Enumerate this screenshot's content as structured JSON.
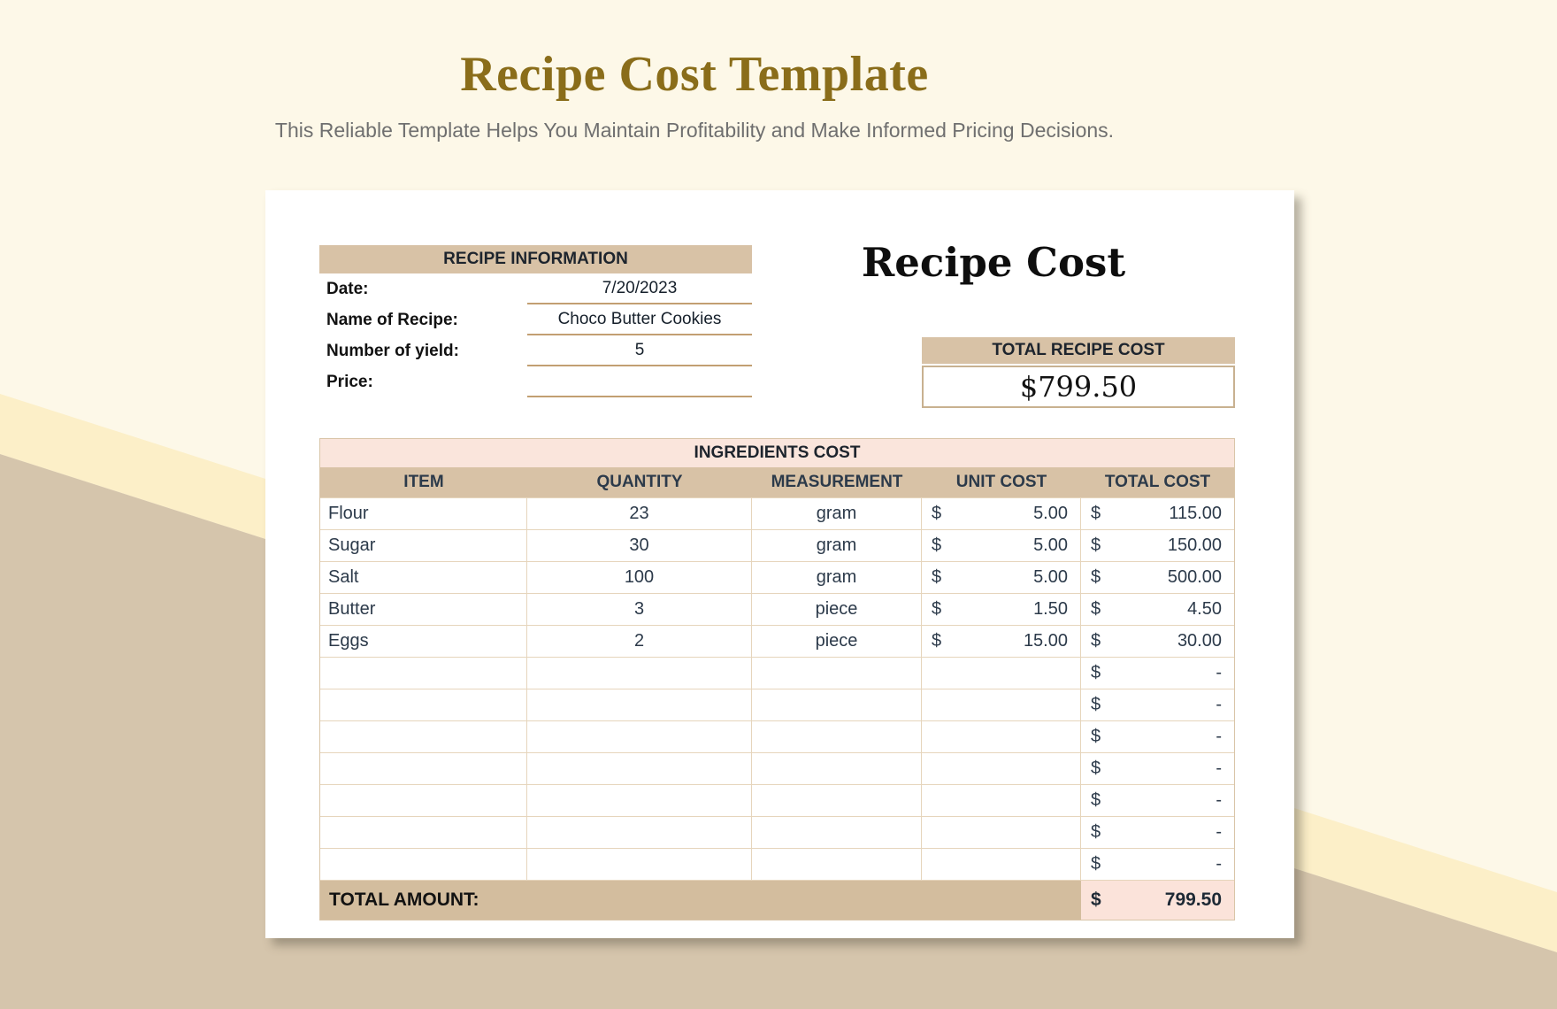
{
  "page": {
    "title": "Recipe Cost Template",
    "subtitle": "This Reliable Template Helps You Maintain Profitability and Make Informed Pricing Decisions."
  },
  "recipe_information": {
    "title": "RECIPE INFORMATION",
    "fields": [
      {
        "label": "Date:",
        "value": "7/20/2023"
      },
      {
        "label": "Name of Recipe:",
        "value": "Choco Butter Cookies"
      },
      {
        "label": "Number of yield:",
        "value": "5"
      },
      {
        "label": "Price:",
        "value": ""
      }
    ]
  },
  "recipe_cost": {
    "heading": "Recipe Cost",
    "total_label": "TOTAL RECIPE COST",
    "total_value": "$799.50"
  },
  "ingredients": {
    "title": "INGREDIENTS COST",
    "columns": [
      "ITEM",
      "QUANTITY",
      "MEASUREMENT",
      "UNIT COST",
      "TOTAL COST"
    ],
    "rows": [
      {
        "item": "Flour",
        "quantity": "23",
        "measurement": "gram",
        "unit_currency": "$",
        "unit_cost": "5.00",
        "total_currency": "$",
        "total_cost": "115.00"
      },
      {
        "item": "Sugar",
        "quantity": "30",
        "measurement": "gram",
        "unit_currency": "$",
        "unit_cost": "5.00",
        "total_currency": "$",
        "total_cost": "150.00"
      },
      {
        "item": "Salt",
        "quantity": "100",
        "measurement": "gram",
        "unit_currency": "$",
        "unit_cost": "5.00",
        "total_currency": "$",
        "total_cost": "500.00"
      },
      {
        "item": "Butter",
        "quantity": "3",
        "measurement": "piece",
        "unit_currency": "$",
        "unit_cost": "1.50",
        "total_currency": "$",
        "total_cost": "4.50"
      },
      {
        "item": "Eggs",
        "quantity": "2",
        "measurement": "piece",
        "unit_currency": "$",
        "unit_cost": "15.00",
        "total_currency": "$",
        "total_cost": "30.00"
      },
      {
        "item": "",
        "quantity": "",
        "measurement": "",
        "unit_currency": "",
        "unit_cost": "",
        "total_currency": "$",
        "total_cost": "-"
      },
      {
        "item": "",
        "quantity": "",
        "measurement": "",
        "unit_currency": "",
        "unit_cost": "",
        "total_currency": "$",
        "total_cost": "-"
      },
      {
        "item": "",
        "quantity": "",
        "measurement": "",
        "unit_currency": "",
        "unit_cost": "",
        "total_currency": "$",
        "total_cost": "-"
      },
      {
        "item": "",
        "quantity": "",
        "measurement": "",
        "unit_currency": "",
        "unit_cost": "",
        "total_currency": "$",
        "total_cost": "-"
      },
      {
        "item": "",
        "quantity": "",
        "measurement": "",
        "unit_currency": "",
        "unit_cost": "",
        "total_currency": "$",
        "total_cost": "-"
      },
      {
        "item": "",
        "quantity": "",
        "measurement": "",
        "unit_currency": "",
        "unit_cost": "",
        "total_currency": "$",
        "total_cost": "-"
      },
      {
        "item": "",
        "quantity": "",
        "measurement": "",
        "unit_currency": "",
        "unit_cost": "",
        "total_currency": "$",
        "total_cost": "-"
      }
    ],
    "footer": {
      "label": "TOTAL AMOUNT:",
      "currency": "$",
      "amount": "799.50"
    }
  },
  "colors": {
    "accent_tan": "#D8C2A6",
    "footer_tan": "#D3BD9E",
    "soft_pink": "#FAE5DC",
    "title_gold": "#8A6D1A",
    "table_text": "#2C3A4A",
    "background_cream": "#FDF8E8",
    "background_stripe": "#FCEFC8",
    "background_ground": "#D5C5AC"
  }
}
